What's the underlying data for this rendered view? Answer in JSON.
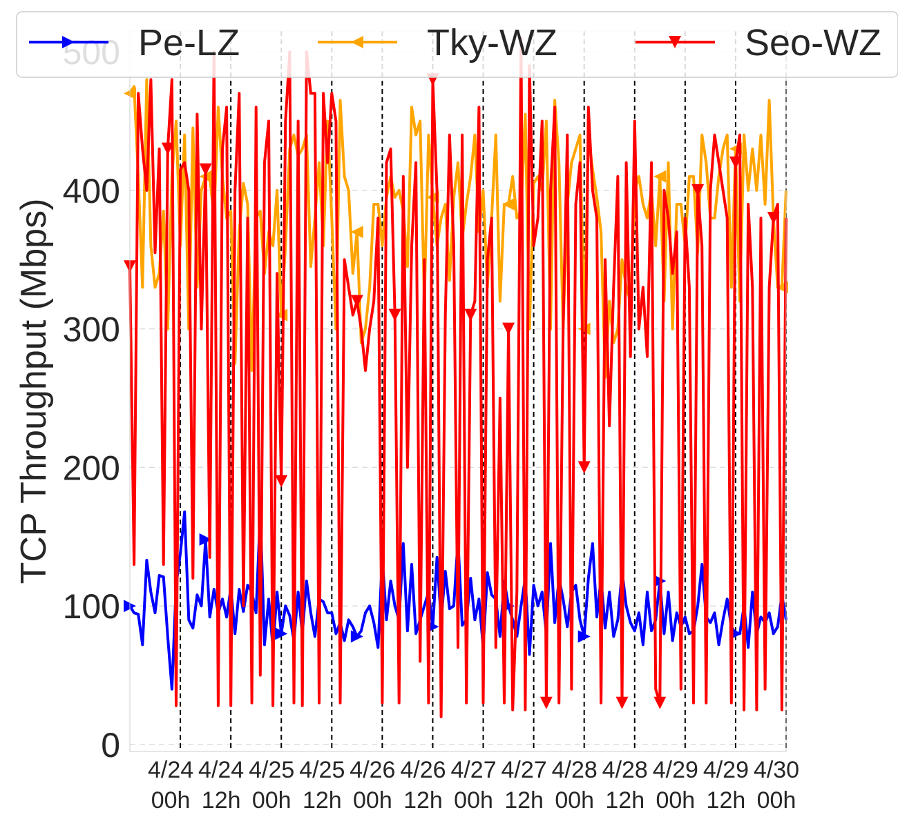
{
  "chart_data": {
    "type": "line",
    "title": "",
    "xlabel": "",
    "ylabel": "TCP Throughput (Mbps)",
    "ylim": [
      -5,
      515
    ],
    "yticks": [
      0,
      100,
      200,
      300,
      400,
      500
    ],
    "xlim": [
      0,
      156
    ],
    "xticks": [
      {
        "x": 12,
        "line1": "4/24",
        "line2": "00h"
      },
      {
        "x": 24,
        "line1": "4/24",
        "line2": "12h"
      },
      {
        "x": 36,
        "line1": "4/25",
        "line2": "00h"
      },
      {
        "x": 48,
        "line1": "4/25",
        "line2": "12h"
      },
      {
        "x": 60,
        "line1": "4/26",
        "line2": "00h"
      },
      {
        "x": 72,
        "line1": "4/26",
        "line2": "12h"
      },
      {
        "x": 84,
        "line1": "4/27",
        "line2": "00h"
      },
      {
        "x": 96,
        "line1": "4/27",
        "line2": "12h"
      },
      {
        "x": 108,
        "line1": "4/28",
        "line2": "00h"
      },
      {
        "x": 120,
        "line1": "4/28",
        "line2": "12h"
      },
      {
        "x": 132,
        "line1": "4/29",
        "line2": "00h"
      },
      {
        "x": 144,
        "line1": "4/29",
        "line2": "12h"
      },
      {
        "x": 156,
        "line1": "4/30",
        "line2": "00h"
      }
    ],
    "day_dividers": [
      12,
      24,
      36,
      48,
      60,
      72,
      84,
      96,
      108,
      120,
      132,
      144,
      156
    ],
    "grid": "horizontal dashed light",
    "legend_position": "top, above plot",
    "series": [
      {
        "name": "Pe-LZ",
        "color": "#0000ff",
        "marker": "triangle-right",
        "values": [
          100,
          95,
          94,
          72,
          133,
          110,
          95,
          122,
          121,
          78,
          40,
          115,
          138,
          168,
          90,
          84,
          108,
          100,
          148,
          92,
          112,
          95,
          105,
          92,
          113,
          80,
          112,
          96,
          115,
          110,
          95,
          168,
          72,
          105,
          70,
          110,
          80,
          100,
          93,
          75,
          110,
          80,
          118,
          95,
          78,
          105,
          103,
          95,
          95,
          80,
          88,
          75,
          90,
          85,
          78,
          82,
          95,
          100,
          88,
          70,
          135,
          90,
          118,
          100,
          90,
          145,
          82,
          130,
          80,
          90,
          100,
          110,
          85,
          135,
          90,
          125,
          98,
          100,
          148,
          86,
          90,
          120,
          90,
          105,
          70,
          124,
          108,
          105,
          78,
          118,
          100,
          90,
          78,
          100,
          120,
          65,
          115,
          100,
          110,
          80,
          145,
          88,
          120,
          105,
          85,
          110,
          115,
          90,
          78,
          120,
          145,
          92,
          120,
          84,
          110,
          78,
          90,
          125,
          100,
          88,
          82,
          95,
          72,
          110,
          82,
          90,
          118,
          80,
          110,
          75,
          95,
          85,
          92,
          80,
          82,
          100,
          130,
          92,
          88,
          95,
          72,
          90,
          105,
          85,
          80,
          80,
          100,
          70,
          110,
          80,
          92,
          88,
          95,
          80,
          85,
          108,
          90
        ]
      },
      {
        "name": "Tky-WZ",
        "color": "#ffa500",
        "marker": "triangle-left",
        "values": [
          470,
          475,
          410,
          330,
          480,
          360,
          330,
          340,
          385,
          300,
          410,
          450,
          360,
          440,
          300,
          445,
          330,
          400,
          410,
          410,
          380,
          460,
          410,
          380,
          385,
          275,
          370,
          405,
          390,
          270,
          380,
          385,
          340,
          370,
          360,
          400,
          310,
          360,
          430,
          440,
          425,
          430,
          440,
          345,
          380,
          420,
          360,
          450,
          380,
          300,
          465,
          410,
          400,
          340,
          370,
          290,
          300,
          330,
          390,
          390,
          360,
          395,
          410,
          395,
          400,
          385,
          345,
          460,
          440,
          450,
          320,
          440,
          395,
          360,
          380,
          390,
          335,
          395,
          420,
          365,
          390,
          410,
          440,
          370,
          400,
          330,
          380,
          440,
          320,
          390,
          390,
          410,
          380,
          385,
          455,
          300,
          405,
          410,
          400,
          450,
          300,
          465,
          420,
          300,
          390,
          420,
          430,
          440,
          300,
          440,
          415,
          395,
          370,
          265,
          320,
          290,
          300,
          350,
          330,
          320,
          400,
          410,
          390,
          380,
          400,
          360,
          410,
          320,
          420,
          300,
          390,
          390,
          360,
          410,
          410,
          355,
          440,
          420,
          380,
          380,
          410,
          430,
          440,
          330,
          430,
          320,
          440,
          400,
          430,
          400,
          440,
          390,
          465,
          380,
          330,
          330,
          400
        ]
      },
      {
        "name": "Seo-WZ",
        "color": "#ff0000",
        "marker": "triangle-down",
        "values": [
          345,
          130,
          470,
          430,
          400,
          480,
          355,
          430,
          130,
          430,
          480,
          28,
          415,
          420,
          400,
          120,
          455,
          300,
          415,
          135,
          500,
          28,
          430,
          460,
          28,
          400,
          470,
          100,
          380,
          30,
          460,
          50,
          420,
          450,
          28,
          340,
          190,
          450,
          500,
          30,
          450,
          28,
          500,
          470,
          470,
          30,
          470,
          420,
          470,
          450,
          30,
          350,
          330,
          310,
          320,
          300,
          270,
          300,
          320,
          380,
          30,
          420,
          430,
          310,
          30,
          410,
          200,
          360,
          420,
          60,
          350,
          30,
          480,
          400,
          20,
          310,
          440,
          360,
          70,
          440,
          30,
          310,
          320,
          460,
          30,
          350,
          380,
          70,
          250,
          30,
          300,
          25,
          110,
          510,
          25,
          490,
          360,
          380,
          450,
          30,
          400,
          460,
          30,
          300,
          440,
          40,
          390,
          420,
          200,
          460,
          400,
          380,
          30,
          350,
          230,
          330,
          410,
          30,
          420,
          280,
          450,
          300,
          330,
          280,
          420,
          40,
          30,
          400,
          380,
          340,
          370,
          40,
          380,
          330,
          30,
          400,
          360,
          30,
          400,
          440,
          420,
          400,
          380,
          30,
          420,
          440,
          25,
          390,
          330,
          25,
          380,
          40,
          330,
          380,
          390,
          25,
          380
        ]
      }
    ],
    "marked_points": {
      "Pe-LZ": [
        0,
        18,
        36,
        54,
        72,
        90,
        108,
        126,
        144
      ],
      "Tky-WZ": [
        0,
        18,
        36,
        54,
        72,
        90,
        108,
        126,
        144,
        155
      ],
      "Seo-WZ": [
        0,
        9,
        18,
        36,
        54,
        63,
        72,
        81,
        90,
        99,
        108,
        117,
        126,
        135,
        144,
        153
      ]
    }
  }
}
